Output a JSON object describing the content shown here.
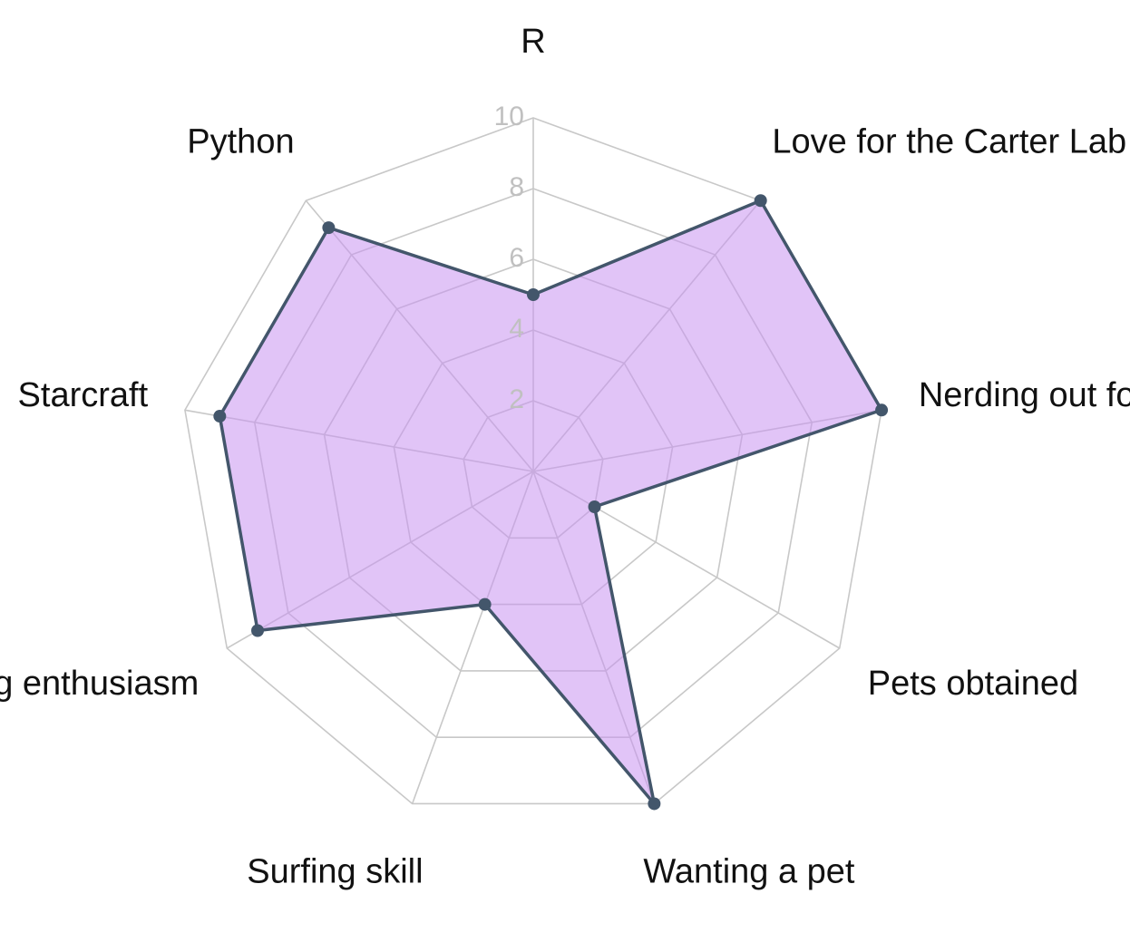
{
  "chart_data": {
    "type": "radar",
    "axes": [
      "R",
      "Love for the Carter Lab",
      "Nerding out for ML",
      "Pets obtained",
      "Wanting a pet",
      "Surfing skill",
      "Surfing enthusiasm",
      "Starcraft",
      "Python"
    ],
    "series": [
      {
        "values": [
          5,
          10,
          10,
          2,
          10,
          4,
          9,
          9,
          9
        ],
        "fill_color": "#c893f0",
        "line_color": "#43566b"
      }
    ],
    "r_ticks": [
      "2",
      "4",
      "6",
      "8",
      "10"
    ],
    "rlim": [
      0,
      10
    ],
    "grid": true
  }
}
